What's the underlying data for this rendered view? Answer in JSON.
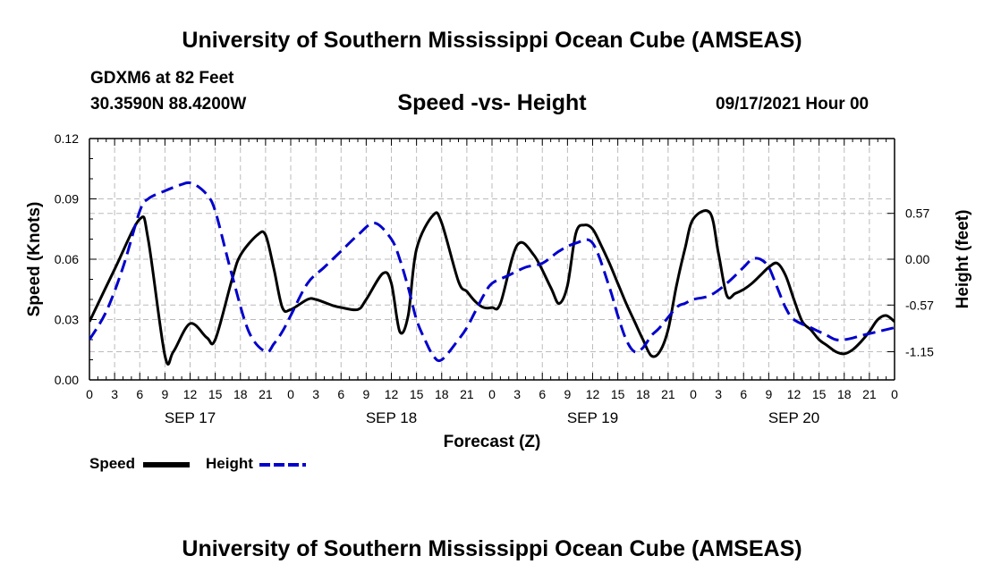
{
  "page": {
    "title_top": "University of Southern Mississippi Ocean Cube (AMSEAS)",
    "title_bottom": "University of Southern Mississippi Ocean Cube (AMSEAS)",
    "station": "GDXM6 at 82 Feet",
    "coords": "30.3590N  88.4200W",
    "chart_title": "Speed -vs- Height",
    "datetime": "09/17/2021 Hour 00"
  },
  "colors": {
    "speed": "#000000",
    "height": "#0000cc",
    "grid": "#bbbbbb"
  },
  "chart_data": {
    "type": "line",
    "title": "Speed -vs- Height",
    "xlabel": "Forecast (Z)",
    "ylabel": "Speed (Knots)",
    "y2label": "Height (feet)",
    "xlim": [
      0,
      96
    ],
    "ylim": [
      0,
      0.12
    ],
    "y2lim": [
      -1.5,
      1.5
    ],
    "x_ticks": [
      0,
      3,
      6,
      9,
      12,
      15,
      18,
      21,
      24,
      27,
      30,
      33,
      36,
      39,
      42,
      45,
      48,
      51,
      54,
      57,
      60,
      63,
      66,
      69,
      72,
      75,
      78,
      81,
      84,
      87,
      90,
      93,
      96
    ],
    "x_tick_labels": [
      "0",
      "3",
      "6",
      "9",
      "12",
      "15",
      "18",
      "21",
      "0",
      "3",
      "6",
      "9",
      "12",
      "15",
      "18",
      "21",
      "0",
      "3",
      "6",
      "9",
      "12",
      "15",
      "18",
      "21",
      "0",
      "3",
      "6",
      "9",
      "12",
      "15",
      "18",
      "21",
      "0"
    ],
    "day_labels": [
      {
        "x": 12,
        "label": "SEP 17"
      },
      {
        "x": 36,
        "label": "SEP 18"
      },
      {
        "x": 60,
        "label": "SEP 19"
      },
      {
        "x": 84,
        "label": "SEP 20"
      }
    ],
    "y_ticks": [
      0.0,
      0.03,
      0.06,
      0.09,
      0.12
    ],
    "y_tick_labels": [
      "0.00",
      "0.03",
      "0.06",
      "0.09",
      "0.12"
    ],
    "y2_ticks": [
      0.57,
      0.0,
      -0.57,
      -1.15
    ],
    "y2_tick_labels": [
      "0.57",
      "0.00",
      "-0.57",
      "-1.15"
    ],
    "grid": true,
    "legend": [
      {
        "label": "Speed",
        "series": "Speed"
      },
      {
        "label": "Height",
        "series": "Height"
      }
    ],
    "series": [
      {
        "name": "Speed",
        "axis": "left",
        "style": "solid",
        "x": [
          0,
          3,
          6,
          7,
          9,
          10,
          12,
          14,
          15,
          17,
          18,
          20,
          21,
          22,
          23,
          24,
          26,
          27,
          29,
          30,
          32,
          33,
          35,
          36,
          37,
          38,
          39,
          41,
          42,
          44,
          45,
          46,
          47,
          48,
          49,
          51,
          53,
          55,
          56,
          57,
          58,
          59,
          60,
          61,
          62,
          63,
          64,
          65,
          66,
          67,
          68,
          69,
          70,
          71,
          72,
          74,
          75,
          76,
          77,
          78,
          79,
          80,
          81,
          82,
          83,
          84,
          85,
          86,
          87,
          88,
          89,
          90,
          91,
          92,
          93,
          94,
          95,
          96
        ],
        "values": [
          0.029,
          0.055,
          0.08,
          0.07,
          0.012,
          0.014,
          0.028,
          0.021,
          0.02,
          0.05,
          0.062,
          0.072,
          0.072,
          0.055,
          0.036,
          0.035,
          0.04,
          0.04,
          0.037,
          0.036,
          0.035,
          0.04,
          0.053,
          0.048,
          0.024,
          0.032,
          0.065,
          0.082,
          0.078,
          0.049,
          0.044,
          0.039,
          0.036,
          0.036,
          0.038,
          0.067,
          0.062,
          0.046,
          0.038,
          0.047,
          0.073,
          0.077,
          0.075,
          0.067,
          0.058,
          0.048,
          0.038,
          0.029,
          0.02,
          0.012,
          0.014,
          0.025,
          0.047,
          0.065,
          0.08,
          0.083,
          0.063,
          0.042,
          0.043,
          0.045,
          0.048,
          0.052,
          0.056,
          0.058,
          0.052,
          0.04,
          0.029,
          0.025,
          0.02,
          0.017,
          0.014,
          0.013,
          0.015,
          0.019,
          0.024,
          0.03,
          0.032,
          0.029
        ]
      },
      {
        "name": "Height",
        "axis": "right",
        "style": "dashed",
        "x": [
          0,
          2,
          4,
          6,
          7,
          9,
          11,
          12,
          13,
          14,
          15,
          17,
          19,
          21,
          22,
          23,
          24,
          26,
          28,
          30,
          32,
          34,
          36,
          37,
          38,
          39,
          40,
          41,
          42,
          44,
          45,
          46,
          47,
          48,
          50,
          52,
          54,
          56,
          58,
          60,
          62,
          63,
          64,
          65,
          66,
          67,
          68,
          70,
          71,
          72,
          74,
          76,
          78,
          79,
          80,
          81,
          82,
          83,
          84,
          86,
          87,
          88,
          89,
          90,
          91,
          92,
          94,
          96
        ],
        "values": [
          -1.0,
          -0.65,
          -0.1,
          0.6,
          0.75,
          0.85,
          0.93,
          0.95,
          0.9,
          0.8,
          0.6,
          -0.2,
          -0.9,
          -1.15,
          -1.05,
          -0.9,
          -0.7,
          -0.3,
          -0.1,
          0.1,
          0.3,
          0.45,
          0.25,
          0.0,
          -0.35,
          -0.75,
          -1.0,
          -1.2,
          -1.25,
          -1.0,
          -0.85,
          -0.65,
          -0.45,
          -0.3,
          -0.2,
          -0.1,
          -0.05,
          0.1,
          0.2,
          0.2,
          -0.35,
          -0.7,
          -1.0,
          -1.15,
          -1.1,
          -0.95,
          -0.85,
          -0.6,
          -0.55,
          -0.5,
          -0.45,
          -0.3,
          -0.1,
          0.0,
          0.0,
          -0.1,
          -0.35,
          -0.6,
          -0.75,
          -0.85,
          -0.9,
          -0.95,
          -1.0,
          -1.0,
          -0.98,
          -0.95,
          -0.9,
          -0.85
        ]
      }
    ]
  }
}
